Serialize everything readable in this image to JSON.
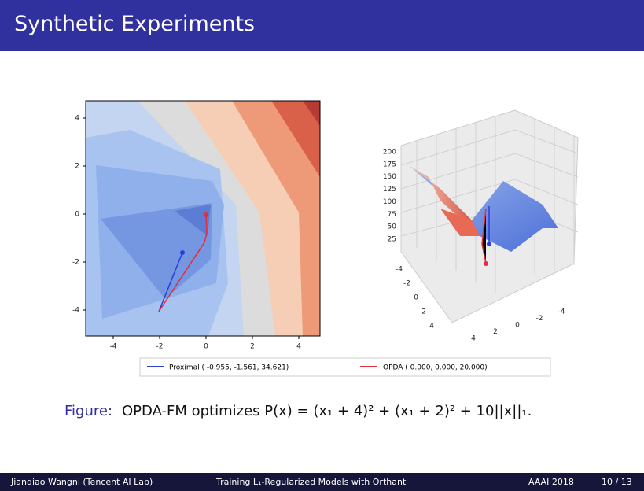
{
  "header": {
    "title": "Synthetic Experiments"
  },
  "figure": {
    "contour": {
      "xticks": [
        -4,
        -2,
        0,
        2,
        4
      ],
      "yticks": [
        4,
        2,
        0,
        -2,
        -4
      ]
    },
    "surface": {
      "zticks": [
        200,
        175,
        150,
        125,
        100,
        75,
        50,
        25
      ],
      "xticks": [
        -4,
        -2,
        0,
        2,
        4
      ],
      "yticks": [
        -4,
        -2,
        0,
        2,
        4
      ]
    },
    "legend": [
      {
        "name": "Proximal ( -0.955,  -1.561,  34.621)",
        "color": "#2a3fd6"
      },
      {
        "name": "OPDA ( 0.000,  0.000,  20.000)",
        "color": "#e0303a"
      }
    ],
    "caption": {
      "label": "Figure:",
      "text": "OPDA-FM optimizes P(x) = (x₁ + 4)² + (x₁ + 2)² + 10||x||₁."
    }
  },
  "footer": {
    "author": "Jianqiao Wangni  (Tencent AI Lab)",
    "talk": "Training L₁-Regularized Models with Orthant",
    "venue": "AAAI 2018",
    "page": "10 / 13"
  }
}
